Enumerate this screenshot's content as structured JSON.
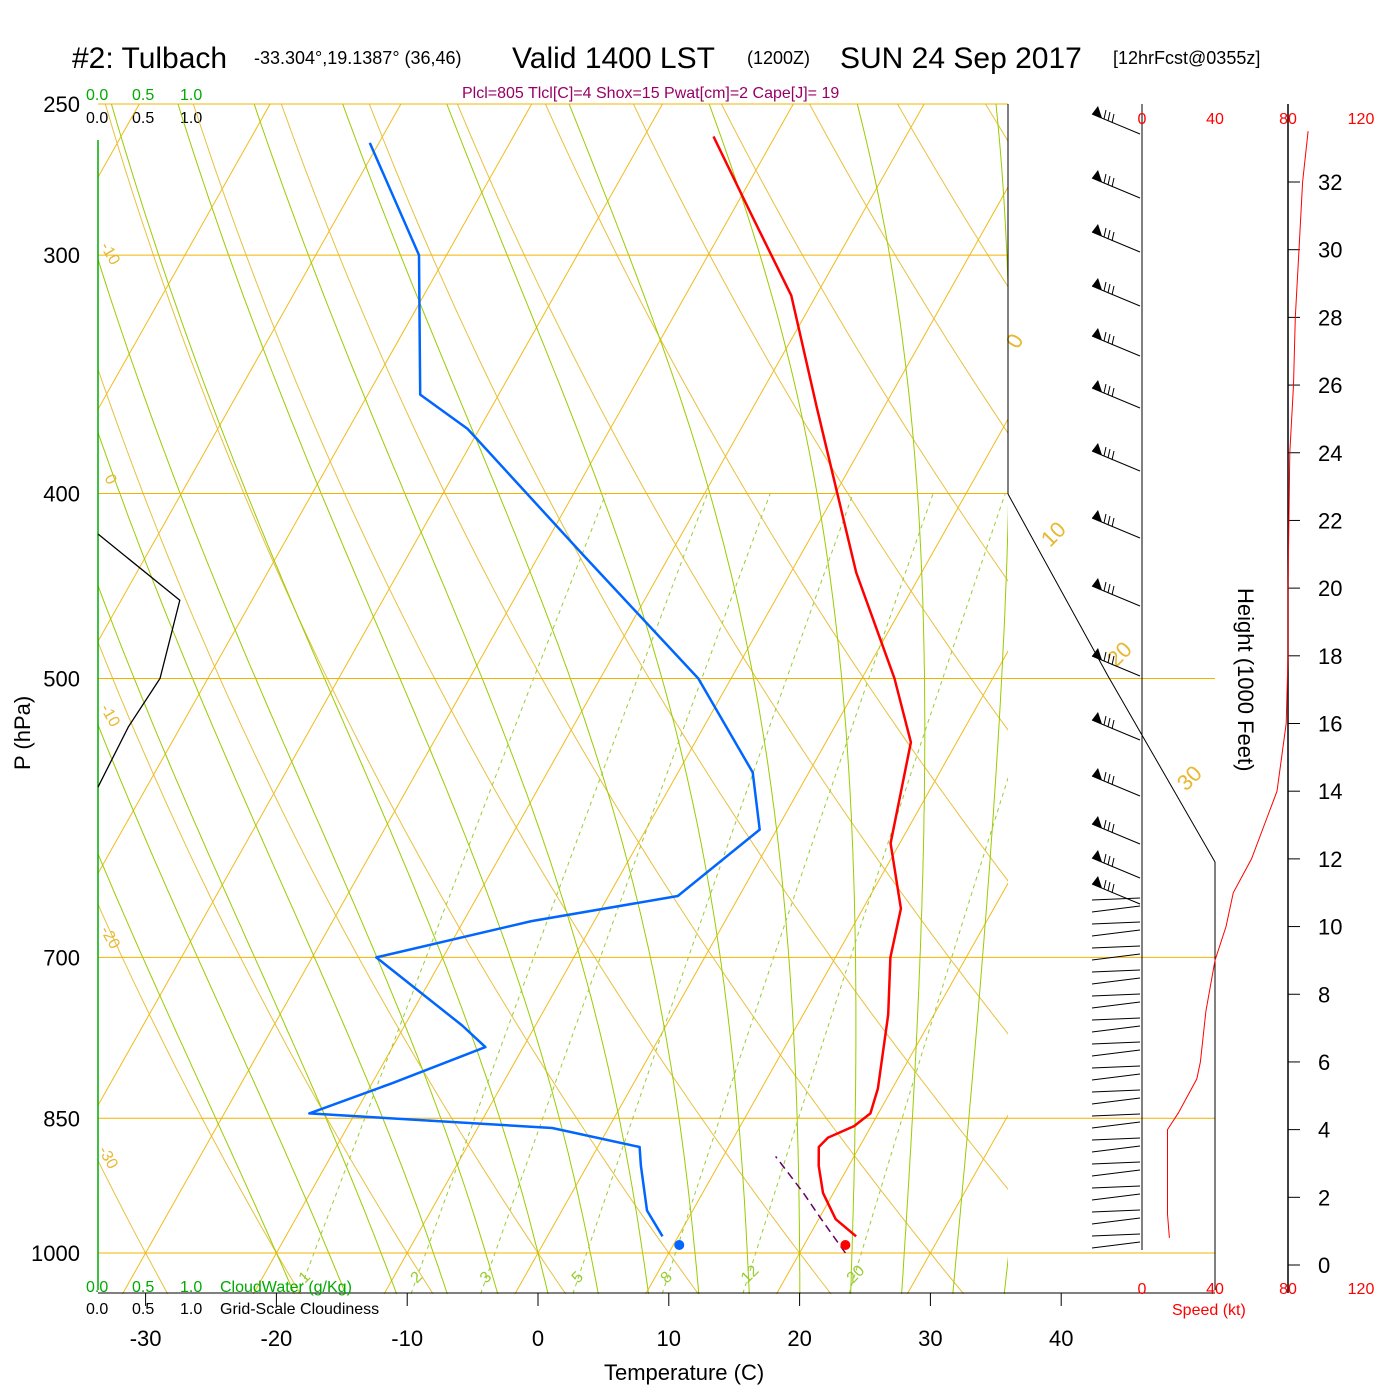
{
  "header": {
    "station": "#2: Tulbach",
    "coords": "-33.304°,19.1387° (36,46)",
    "valid": "Valid 1400 LST",
    "zulu": "(1200Z)",
    "date": "SUN 24 Sep 2017",
    "forecast": "[12hrFcst@0355z]"
  },
  "stats_line": "Plcl=805 Tlcl[C]=4 Shox=15 Pwat[cm]=2 Cape[J]= 19",
  "cloud_scale": {
    "labels": [
      "0.0",
      "0.5",
      "1.0"
    ],
    "cloudwater_title": "CloudWater (g/Kg)",
    "cloudiness_title": "Grid-Scale Cloudiness"
  },
  "colors": {
    "temperature": "#ff0000",
    "dewpoint": "#0066ff",
    "isotherm": "#f0b400",
    "dry_adiabat": "#e8c040",
    "moist_adiabat": "#99cc00",
    "mixing_ratio": "#99cc33",
    "parcel": "#660066",
    "cloudwater": "#00aa00",
    "speed_profile": "#ff0000"
  },
  "axes": {
    "x_title": "Temperature (C)",
    "y_title": "P (hPa)",
    "right_title": "Height (1000 Feet)",
    "speed_title": "Speed (kt)"
  },
  "chart_data": {
    "type": "skew-t log-p sounding",
    "pressure_levels": [
      250,
      300,
      400,
      500,
      700,
      850,
      1000
    ],
    "temp_ticks": [
      -30,
      -20,
      -10,
      0,
      10,
      20,
      30,
      40
    ],
    "xlim": [
      -33,
      36
    ],
    "ylim": [
      1000,
      250
    ],
    "height_ticks_kft": [
      0,
      2,
      4,
      6,
      8,
      10,
      12,
      14,
      16,
      18,
      20,
      22,
      24,
      26,
      28,
      30,
      32
    ],
    "speed_ticks_kt": [
      0,
      40,
      80,
      120
    ],
    "isotherm_labels": [
      "-10",
      "0",
      "-10",
      "-20",
      "-30",
      "0",
      "10",
      "20",
      "30"
    ],
    "mixing_ratio_labels": [
      "1",
      "2",
      "3",
      "5",
      "8",
      "12",
      "20"
    ],
    "temperature_profile": [
      {
        "p": 980,
        "t": 23.6
      },
      {
        "p": 960,
        "t": 21.3
      },
      {
        "p": 930,
        "t": 19.2
      },
      {
        "p": 900,
        "t": 17.7
      },
      {
        "p": 880,
        "t": 16.9
      },
      {
        "p": 870,
        "t": 17.2
      },
      {
        "p": 858,
        "t": 18.7
      },
      {
        "p": 845,
        "t": 19.4
      },
      {
        "p": 820,
        "t": 18.9
      },
      {
        "p": 750,
        "t": 16.5
      },
      {
        "p": 700,
        "t": 14.2
      },
      {
        "p": 660,
        "t": 12.9
      },
      {
        "p": 610,
        "t": 9.3
      },
      {
        "p": 540,
        "t": 6.5
      },
      {
        "p": 500,
        "t": 2.5
      },
      {
        "p": 440,
        "t": -5.0
      },
      {
        "p": 360,
        "t": -15.2
      },
      {
        "p": 315,
        "t": -21.9
      },
      {
        "p": 285,
        "t": -28.6
      },
      {
        "p": 260,
        "t": -34.7
      }
    ],
    "dewpoint_profile": [
      {
        "p": 980,
        "t": 8.8
      },
      {
        "p": 950,
        "t": 6.5
      },
      {
        "p": 900,
        "t": 4.1
      },
      {
        "p": 880,
        "t": 3.2
      },
      {
        "p": 860,
        "t": -4.3
      },
      {
        "p": 845,
        "t": -23.5
      },
      {
        "p": 815,
        "t": -18.5
      },
      {
        "p": 780,
        "t": -12.9
      },
      {
        "p": 760,
        "t": -15.6
      },
      {
        "p": 700,
        "t": -25.1
      },
      {
        "p": 670,
        "t": -14.8
      },
      {
        "p": 650,
        "t": -4.7
      },
      {
        "p": 600,
        "t": -1.3
      },
      {
        "p": 560,
        "t": -4.3
      },
      {
        "p": 500,
        "t": -12.5
      },
      {
        "p": 430,
        "t": -26.8
      },
      {
        "p": 370,
        "t": -40.9
      },
      {
        "p": 355,
        "t": -46.0
      },
      {
        "p": 300,
        "t": -52.1
      },
      {
        "p": 262,
        "t": -60.7
      }
    ],
    "parcel_profile": [
      {
        "p": 1000,
        "t": 23.5
      },
      {
        "p": 960,
        "t": 20.2
      },
      {
        "p": 930,
        "t": 17.7
      },
      {
        "p": 890,
        "t": 14.0
      }
    ],
    "surface_temperature": 23.5,
    "surface_dewpoint": 10.8,
    "cloud_fraction_profile": [
      {
        "p": 420,
        "v": 0.0
      },
      {
        "p": 455,
        "v": 0.62
      },
      {
        "p": 500,
        "v": 0.47
      },
      {
        "p": 530,
        "v": 0.23
      },
      {
        "p": 570,
        "v": 0.0
      }
    ],
    "speed_profile_height_vs_kt": [
      {
        "h": 0.8,
        "s": 15
      },
      {
        "h": 1.5,
        "s": 14
      },
      {
        "h": 3.0,
        "s": 14
      },
      {
        "h": 4.0,
        "s": 14
      },
      {
        "h": 4.5,
        "s": 20
      },
      {
        "h": 5.5,
        "s": 30
      },
      {
        "h": 6.0,
        "s": 32
      },
      {
        "h": 7.5,
        "s": 35
      },
      {
        "h": 9.0,
        "s": 40
      },
      {
        "h": 10.0,
        "s": 46
      },
      {
        "h": 11.0,
        "s": 50
      },
      {
        "h": 12.0,
        "s": 60
      },
      {
        "h": 14.0,
        "s": 74
      },
      {
        "h": 16.0,
        "s": 79
      },
      {
        "h": 18.0,
        "s": 80
      },
      {
        "h": 20.0,
        "s": 80
      },
      {
        "h": 24.0,
        "s": 81
      },
      {
        "h": 26.0,
        "s": 83
      },
      {
        "h": 28.0,
        "s": 84
      },
      {
        "h": 30.0,
        "s": 86
      },
      {
        "h": 32.0,
        "s": 88
      },
      {
        "h": 33.5,
        "s": 91
      }
    ]
  }
}
